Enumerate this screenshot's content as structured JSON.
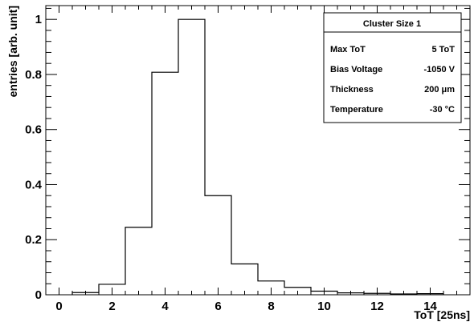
{
  "chart_data": {
    "type": "histogram",
    "title": "",
    "xlabel": "ToT [25ns]",
    "ylabel": "entries [arb. unit]",
    "xlim": [
      -0.5,
      15.5
    ],
    "ylim": [
      0,
      1.05
    ],
    "x_ticks": [
      0,
      2,
      4,
      6,
      8,
      10,
      12,
      14
    ],
    "y_ticks": [
      0,
      0.2,
      0.4,
      0.6,
      0.8,
      1
    ],
    "x_tick_labels": [
      "0",
      "2",
      "4",
      "6",
      "8",
      "10",
      "12",
      "14"
    ],
    "y_tick_labels": [
      "0",
      "0.2",
      "0.4",
      "0.6",
      "0.8",
      "1"
    ],
    "bin_edges": [
      0.5,
      1.5,
      2.5,
      3.5,
      4.5,
      5.5,
      6.5,
      7.5,
      8.5,
      9.5,
      10.5,
      11.5,
      12.5,
      13.5,
      14.5
    ],
    "values": [
      0.008,
      0.038,
      0.245,
      0.808,
      1.0,
      0.36,
      0.112,
      0.05,
      0.027,
      0.013,
      0.007,
      0.005,
      0.003,
      0.004
    ],
    "grid": false,
    "stats_box": {
      "title": "Cluster Size 1",
      "rows": [
        {
          "label": "Max ToT",
          "value": "5 ToT"
        },
        {
          "label": "Bias Voltage",
          "value": "-1050 V"
        },
        {
          "label": "Thickness",
          "value": "200 μm"
        },
        {
          "label": "Temperature",
          "value": "-30 °C"
        }
      ]
    }
  }
}
